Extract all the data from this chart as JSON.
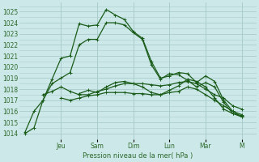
{
  "xlabel": "Pression niveau de la mer( hPa )",
  "bg_color": "#cde8e8",
  "grid_color": "#aacccc",
  "line_color": "#1a5c1a",
  "ylim": [
    1013.5,
    1025.8
  ],
  "yticks": [
    1014,
    1015,
    1016,
    1017,
    1018,
    1019,
    1020,
    1021,
    1022,
    1023,
    1024,
    1025
  ],
  "day_labels": [
    "Jeu",
    "Sam",
    "Dim",
    "Lun",
    "Mar",
    "M"
  ],
  "day_positions": [
    2,
    4,
    6,
    8,
    10,
    12
  ],
  "xlim": [
    -0.3,
    12.8
  ],
  "series": [
    {
      "x": [
        0,
        0.5,
        1,
        1.5,
        2,
        2.5,
        3,
        3.5,
        4,
        4.5,
        5,
        5.5,
        6,
        6.5,
        7,
        7.5,
        8,
        8.5,
        9,
        9.5,
        10,
        10.5,
        11,
        11.5,
        12
      ],
      "y": [
        1014.0,
        1014.5,
        1017.0,
        1018.9,
        1020.8,
        1021.0,
        1023.9,
        1023.7,
        1023.8,
        1025.2,
        1024.7,
        1024.3,
        1023.2,
        1022.6,
        1020.5,
        1019.0,
        1019.2,
        1019.5,
        1019.4,
        1018.6,
        1019.2,
        1018.7,
        1017.0,
        1016.0,
        1015.5
      ]
    },
    {
      "x": [
        0,
        0.5,
        1,
        1.5,
        2,
        2.5,
        3,
        3.5,
        4,
        4.5,
        5,
        5.5,
        6,
        6.5,
        7,
        7.5,
        8,
        8.5,
        9,
        9.5,
        10,
        10.5,
        11,
        11.5,
        12
      ],
      "y": [
        1014.1,
        1016.0,
        1017.0,
        1018.5,
        1019.0,
        1019.5,
        1022.0,
        1022.5,
        1022.5,
        1024.0,
        1024.0,
        1023.8,
        1023.1,
        1022.5,
        1020.2,
        1018.9,
        1019.4,
        1019.3,
        1018.8,
        1018.2,
        1018.6,
        1018.2,
        1016.8,
        1015.8,
        1015.6
      ]
    },
    {
      "x": [
        1,
        1.5,
        2,
        2.5,
        3,
        3.5,
        4,
        4.5,
        5,
        5.5,
        6,
        6.5,
        7,
        7.5,
        8,
        8.5,
        9,
        9.5,
        10,
        10.5,
        11,
        11.5,
        12
      ],
      "y": [
        1017.5,
        1017.8,
        1018.2,
        1017.8,
        1017.5,
        1017.5,
        1017.8,
        1018.0,
        1018.3,
        1018.5,
        1018.5,
        1018.5,
        1018.4,
        1018.3,
        1018.4,
        1018.6,
        1018.7,
        1018.5,
        1018.0,
        1017.5,
        1017.2,
        1016.5,
        1016.2
      ]
    },
    {
      "x": [
        2,
        2.5,
        3,
        3.5,
        4,
        4.5,
        5,
        5.5,
        6,
        6.5,
        7,
        7.5,
        8,
        8.5,
        9,
        9.5,
        10,
        10.5,
        11,
        11.5,
        12
      ],
      "y": [
        1017.2,
        1017.0,
        1017.2,
        1017.4,
        1017.5,
        1017.7,
        1017.7,
        1017.7,
        1017.6,
        1017.6,
        1017.5,
        1017.5,
        1017.7,
        1017.8,
        1018.2,
        1018.0,
        1017.5,
        1017.0,
        1016.5,
        1016.0,
        1015.7
      ]
    },
    {
      "x": [
        3,
        3.5,
        4,
        4.5,
        5,
        5.5,
        6,
        6.5,
        7,
        7.5,
        8,
        8.5,
        9,
        9.5,
        10,
        10.5,
        11,
        11.5,
        12
      ],
      "y": [
        1017.6,
        1017.9,
        1017.7,
        1018.2,
        1018.6,
        1018.7,
        1018.5,
        1018.2,
        1017.7,
        1017.5,
        1017.9,
        1018.3,
        1018.9,
        1018.7,
        1018.2,
        1017.2,
        1016.2,
        1015.8,
        1015.5
      ]
    }
  ]
}
